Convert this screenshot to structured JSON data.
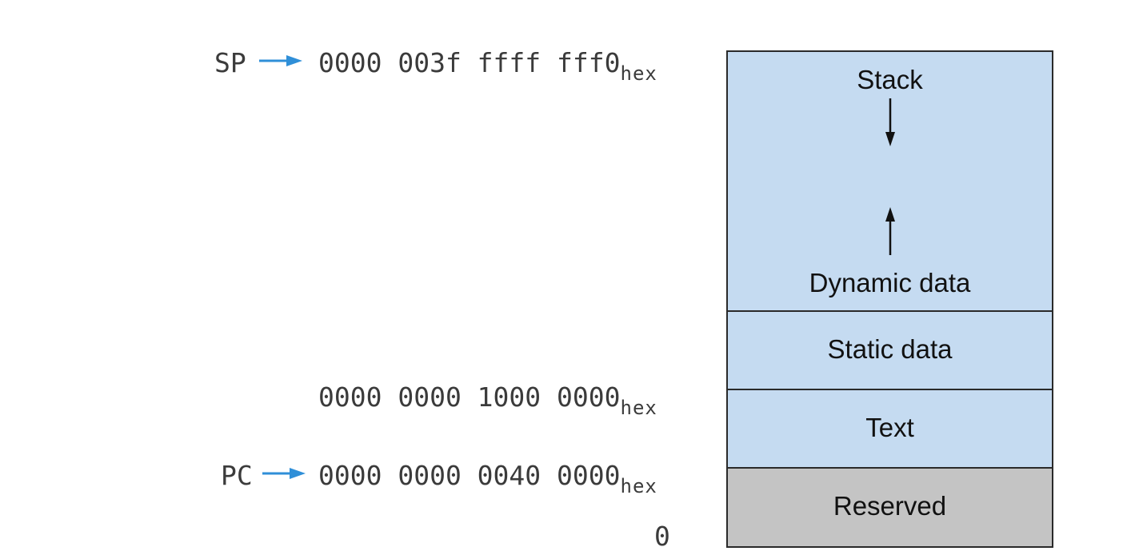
{
  "pointers": {
    "sp": {
      "label": "SP",
      "address": "0000 003f ffff fff0",
      "subscript": "hex"
    },
    "pc": {
      "label": "PC",
      "address": "0000 0000 0040 0000",
      "subscript": "hex"
    }
  },
  "static_boundary": {
    "address": "0000 0000 1000 0000",
    "subscript": "hex"
  },
  "bottom_address": "0",
  "segments": {
    "stack": "Stack",
    "dynamic": "Dynamic data",
    "static": "Static data",
    "text": "Text",
    "reserved": "Reserved"
  },
  "colors": {
    "segment_fill": "#c5dbf1",
    "reserved_fill": "#c4c4c4",
    "pointer_arrow": "#2f8fd8"
  }
}
